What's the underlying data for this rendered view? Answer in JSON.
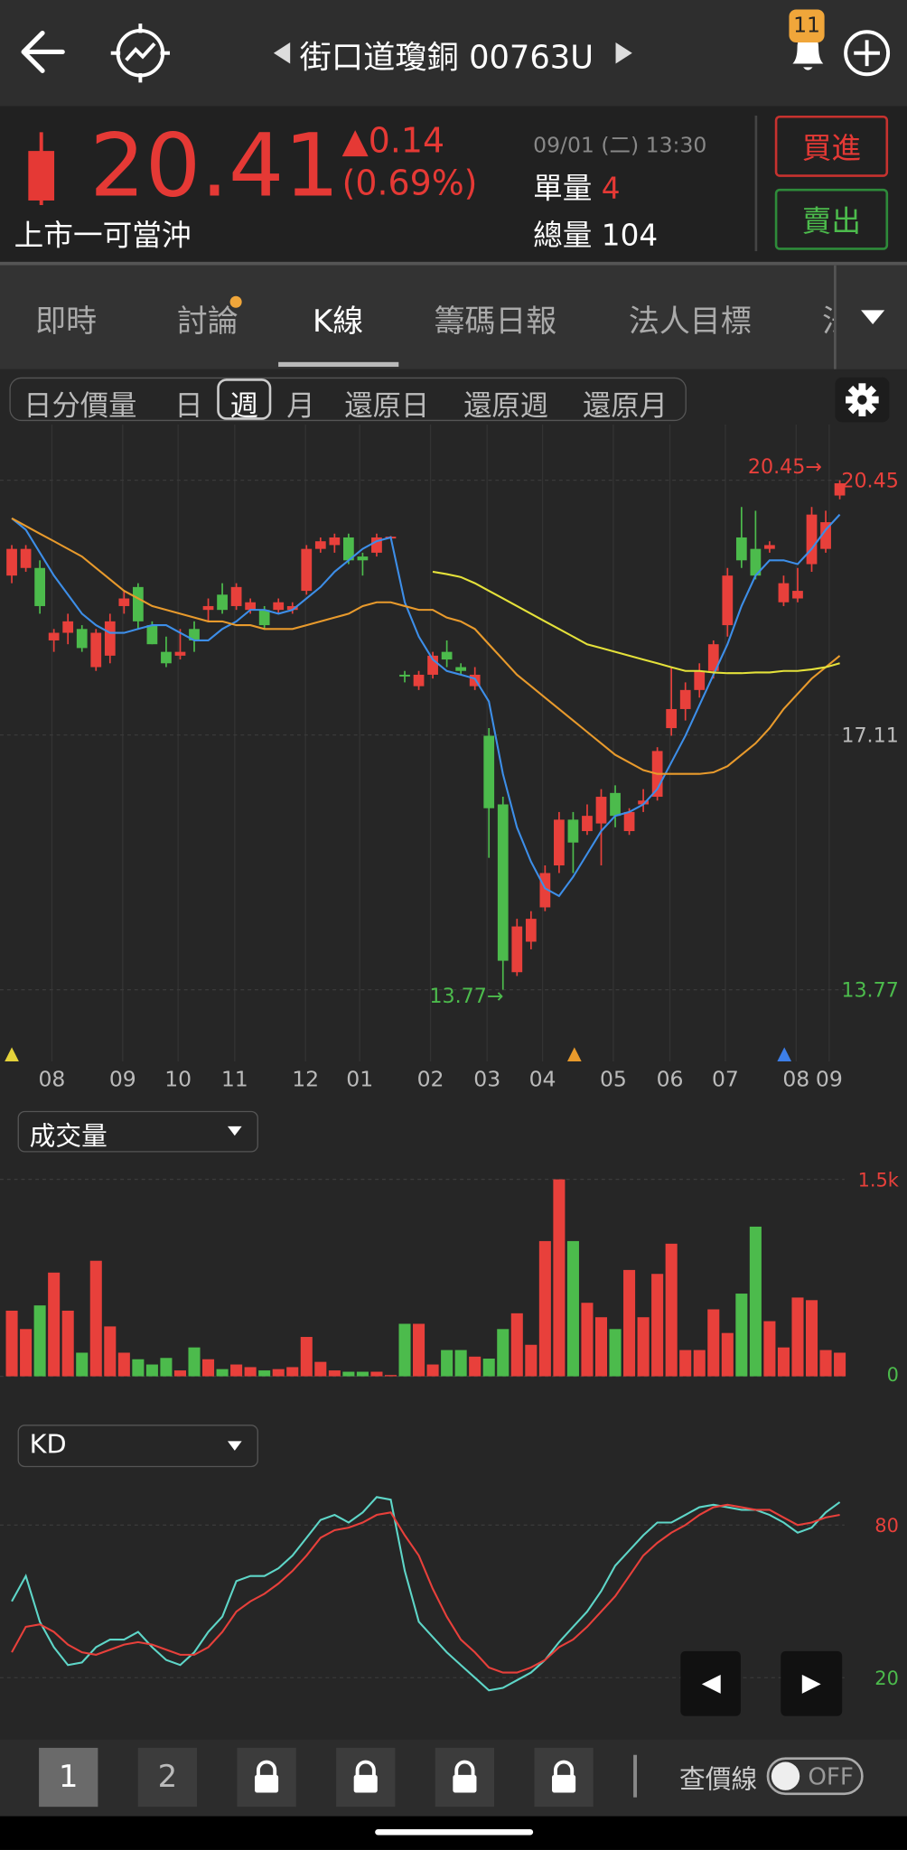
{
  "header": {
    "title": "街口道瓊銅 00763U",
    "alert_count": "11"
  },
  "quote": {
    "price": "20.41",
    "change": "▲0.14",
    "change_pct": "(0.69%)",
    "market": "上市一可當沖",
    "time": "09/01 (二) 13:30",
    "lot_label": "單量",
    "lot": "4",
    "total_label": "總量",
    "total": "104",
    "buy": "買進",
    "sell": "賣出"
  },
  "tabs": [
    "即時",
    "討論",
    "K線",
    "籌碼日報",
    "法人目標",
    "法"
  ],
  "selected_tab": 2,
  "periods": [
    "日分價量",
    "日",
    "週",
    "月",
    "還原日",
    "還原週",
    "還原月"
  ],
  "selected_period": 2,
  "chart_data": [
    {
      "type": "candlestick",
      "up_color": "#e8403b",
      "down_color": "#4cbb4c",
      "grid": true,
      "open": [
        19.2,
        19.3,
        19.3,
        18.35,
        18.45,
        18.5,
        18.0,
        18.15,
        18.8,
        19.05,
        18.55,
        18.2,
        18.15,
        18.5,
        18.75,
        18.95,
        18.8,
        18.75,
        18.75,
        18.75,
        18.75,
        19.0,
        19.55,
        19.6,
        19.7,
        19.45,
        19.5,
        19.7,
        17.9,
        17.75,
        17.9,
        18.2,
        18.0,
        17.75,
        17.1,
        16.2,
        14.0,
        14.4,
        14.85,
        15.4,
        16.0,
        15.85,
        15.95,
        16.35,
        15.85,
        16.2,
        16.3,
        17.2,
        17.45,
        17.7,
        17.95,
        18.55,
        19.7,
        19.55,
        19.55,
        18.85,
        18.9,
        19.35,
        19.55,
        20.25
      ],
      "high": [
        19.6,
        19.6,
        19.4,
        18.5,
        18.7,
        18.55,
        18.5,
        18.7,
        19.0,
        19.1,
        18.6,
        18.4,
        18.5,
        18.6,
        18.9,
        19.1,
        19.1,
        18.9,
        18.8,
        18.9,
        18.85,
        19.6,
        19.7,
        19.75,
        19.75,
        19.5,
        19.75,
        19.72,
        17.95,
        17.95,
        18.2,
        18.35,
        18.05,
        18.0,
        17.2,
        16.3,
        14.7,
        14.8,
        15.4,
        16.1,
        16.1,
        16.2,
        16.4,
        16.45,
        16.15,
        16.4,
        16.95,
        18.0,
        17.8,
        18.05,
        18.35,
        19.3,
        20.1,
        20.05,
        19.65,
        19.2,
        19.3,
        20.1,
        20.05,
        20.45
      ],
      "low": [
        19.1,
        19.25,
        18.7,
        18.2,
        18.3,
        18.2,
        17.95,
        18.05,
        18.7,
        18.5,
        18.3,
        18.0,
        18.1,
        18.2,
        18.6,
        18.7,
        18.75,
        18.7,
        18.5,
        18.7,
        18.7,
        18.95,
        19.5,
        19.5,
        19.35,
        19.2,
        19.45,
        19.7,
        17.8,
        17.7,
        17.85,
        18.0,
        17.9,
        17.7,
        15.5,
        13.77,
        13.95,
        14.3,
        14.8,
        15.3,
        15.3,
        15.8,
        15.4,
        15.9,
        15.8,
        16.1,
        16.25,
        17.1,
        17.3,
        17.6,
        17.85,
        18.4,
        19.3,
        19.15,
        19.5,
        18.8,
        18.85,
        19.25,
        19.5,
        20.2
      ],
      "close": [
        19.55,
        19.55,
        18.8,
        18.45,
        18.6,
        18.25,
        18.45,
        18.6,
        18.9,
        18.6,
        18.3,
        18.05,
        18.2,
        18.35,
        18.8,
        18.75,
        19.05,
        18.85,
        18.55,
        18.85,
        18.8,
        19.55,
        19.65,
        19.7,
        19.4,
        19.4,
        19.7,
        19.71,
        17.88,
        17.9,
        18.15,
        18.1,
        17.95,
        17.9,
        16.15,
        14.15,
        14.6,
        14.7,
        15.3,
        16.0,
        15.7,
        16.05,
        16.3,
        16.05,
        16.1,
        16.25,
        16.9,
        17.45,
        17.7,
        17.95,
        18.3,
        19.2,
        19.4,
        19.2,
        19.6,
        19.1,
        19.0,
        20.0,
        19.9,
        20.41
      ],
      "lines": [
        {
          "color": "#3d8ee8",
          "values": [
            19.95,
            19.8,
            19.5,
            19.2,
            18.95,
            18.7,
            18.55,
            18.45,
            18.45,
            18.5,
            18.55,
            18.55,
            18.45,
            18.35,
            18.35,
            18.5,
            18.6,
            18.75,
            18.75,
            18.7,
            18.75,
            18.9,
            19.05,
            19.25,
            19.4,
            19.55,
            19.65,
            19.7,
            18.85,
            18.4,
            18.1,
            17.95,
            17.9,
            17.85,
            17.55,
            16.6,
            15.9,
            15.45,
            15.1,
            15.0,
            15.25,
            15.55,
            15.85,
            16.05,
            16.1,
            16.2,
            16.4,
            16.75,
            17.1,
            17.5,
            17.9,
            18.3,
            18.8,
            19.2,
            19.4,
            19.4,
            19.35,
            19.55,
            19.8,
            20.0
          ]
        },
        {
          "color": "#e89a2c",
          "values": [
            19.95,
            19.85,
            19.75,
            19.65,
            19.55,
            19.45,
            19.3,
            19.15,
            19.0,
            18.9,
            18.8,
            18.75,
            18.7,
            18.65,
            18.6,
            18.6,
            18.55,
            18.55,
            18.5,
            18.5,
            18.5,
            18.55,
            18.6,
            18.65,
            18.7,
            18.8,
            18.85,
            18.85,
            18.8,
            18.75,
            18.75,
            18.65,
            18.6,
            18.5,
            18.3,
            18.1,
            17.9,
            17.75,
            17.6,
            17.45,
            17.3,
            17.15,
            17.0,
            16.85,
            16.75,
            16.65,
            16.6,
            16.6,
            16.6,
            16.6,
            16.62,
            16.7,
            16.85,
            17.0,
            17.2,
            17.45,
            17.65,
            17.85,
            18.0,
            18.15
          ]
        },
        {
          "color": "#e4e13a",
          "values": [
            null,
            null,
            null,
            null,
            null,
            null,
            null,
            null,
            null,
            null,
            null,
            null,
            null,
            null,
            null,
            null,
            null,
            null,
            null,
            null,
            null,
            null,
            null,
            null,
            null,
            null,
            null,
            null,
            null,
            null,
            19.25,
            19.22,
            19.18,
            19.1,
            19.0,
            18.9,
            18.8,
            18.7,
            18.6,
            18.5,
            18.4,
            18.3,
            18.25,
            18.2,
            18.15,
            18.1,
            18.05,
            18.0,
            17.95,
            17.95,
            17.93,
            17.92,
            17.92,
            17.93,
            17.93,
            17.95,
            17.95,
            17.97,
            18.0,
            18.05
          ]
        }
      ],
      "ylim": [
        12.83,
        21.18
      ],
      "yticks": [
        13.77,
        17.11,
        20.45
      ],
      "max_label": {
        "value": 20.45,
        "label": "20.45→"
      },
      "min_label": {
        "value": 13.77,
        "label": "13.77→"
      },
      "x_tick_labels": [
        "08",
        "09",
        "10",
        "11",
        "12",
        "01",
        "02",
        "03",
        "04",
        "05",
        "06",
        "07",
        "08",
        "09"
      ]
    },
    {
      "type": "bar",
      "title": "成交量",
      "values": [
        500,
        360,
        540,
        790,
        500,
        180,
        880,
        380,
        180,
        130,
        90,
        140,
        45,
        220,
        130,
        55,
        90,
        70,
        45,
        55,
        70,
        300,
        110,
        45,
        35,
        35,
        35,
        10,
        400,
        400,
        90,
        200,
        200,
        150,
        135,
        360,
        480,
        240,
        1030,
        1500,
        1030,
        560,
        450,
        360,
        810,
        450,
        780,
        1010,
        200,
        200,
        510,
        330,
        630,
        1140,
        420,
        220,
        600,
        580,
        200,
        180
      ],
      "ylim": [
        0,
        1500
      ],
      "yticks": [
        {
          "value": 1500,
          "label": "1.5k"
        },
        0
      ]
    },
    {
      "type": "line",
      "title": "KD",
      "series": [
        {
          "color": "#5ed6c8",
          "values": [
            50,
            60,
            42,
            32,
            25,
            26,
            32,
            35,
            35,
            38,
            32,
            27,
            25,
            30,
            38,
            44,
            58,
            60,
            60,
            63,
            68,
            75,
            82,
            84,
            81,
            85,
            91,
            90,
            62,
            42,
            36,
            30,
            25,
            20,
            15,
            16,
            19,
            22,
            27,
            34,
            40,
            46,
            54,
            64,
            70,
            76,
            81,
            81,
            84,
            87,
            88,
            87,
            86,
            86,
            84,
            81,
            77,
            79,
            85,
            89
          ]
        },
        {
          "color": "#e8403b",
          "values": [
            30,
            40,
            41,
            38,
            33,
            30,
            29,
            31,
            33,
            34,
            33,
            31,
            29,
            29,
            32,
            38,
            46,
            50,
            53,
            57,
            62,
            68,
            75,
            78,
            79,
            81,
            84,
            85,
            76,
            68,
            55,
            44,
            35,
            30,
            24,
            22,
            22,
            24,
            27,
            32,
            35,
            40,
            46,
            52,
            60,
            68,
            73,
            77,
            80,
            84,
            87,
            88,
            87,
            86,
            86,
            83,
            80,
            81,
            83,
            84
          ]
        }
      ],
      "ylim": [
        -2,
        100
      ],
      "yticks": [
        80,
        20
      ]
    }
  ],
  "footer": {
    "pages": [
      "1",
      "2"
    ],
    "price_line": "查價線",
    "toggle": "OFF"
  }
}
